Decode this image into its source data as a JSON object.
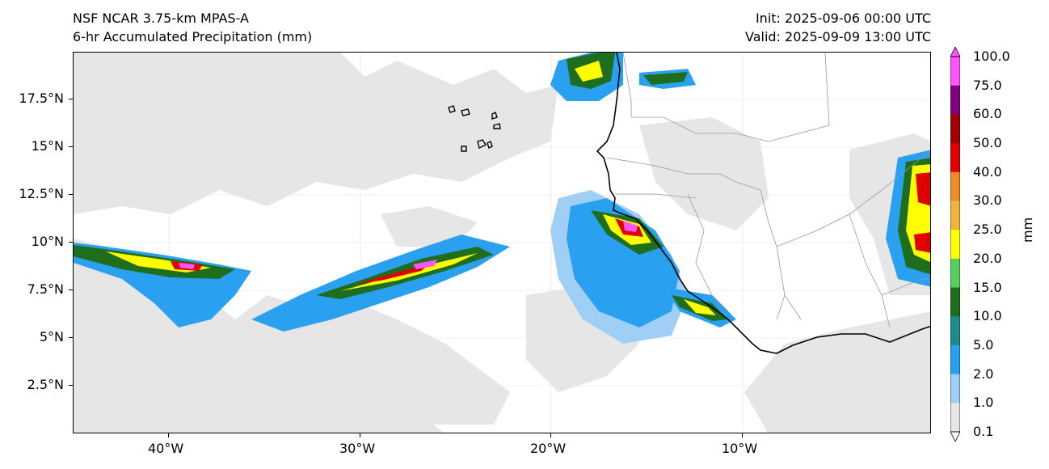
{
  "header": {
    "title_left_1": "NSF NCAR 3.75-km MPAS-A",
    "title_left_2": "6-hr Accumulated Precipitation (mm)",
    "title_right_1": "Init: 2025-09-06 00:00 UTC",
    "title_right_2": "Valid: 2025-09-09 13:00 UTC"
  },
  "axes": {
    "lat_labels": [
      "17.5°N",
      "15°N",
      "12.5°N",
      "10°N",
      "7.5°N",
      "5°N",
      "2.5°N"
    ],
    "lon_labels": [
      "40°W",
      "30°W",
      "20°W",
      "10°W"
    ]
  },
  "colorbar": {
    "unit": "mm",
    "levels": [
      "100.0",
      "75.0",
      "60.0",
      "50.0",
      "40.0",
      "30.0",
      "25.0",
      "20.0",
      "15.0",
      "10.0",
      "5.0",
      "2.0",
      "1.0",
      "0.1"
    ],
    "colors": [
      "#ff55ff",
      "#800080",
      "#a00000",
      "#e00000",
      "#f08c28",
      "#f0b43c",
      "#ffff00",
      "#55d060",
      "#1e6e1e",
      "#1e8c8c",
      "#2aa0f0",
      "#a0cff5",
      "#e6e6e6"
    ]
  },
  "map": {
    "background": "#ffffff",
    "light_precip": "#e6e6e6",
    "coast_color": "#000000",
    "border_color": "#999999"
  }
}
